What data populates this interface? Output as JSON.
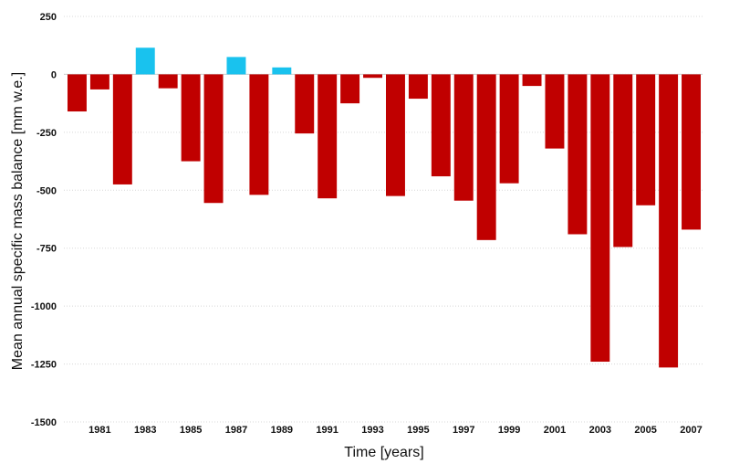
{
  "chart_data": {
    "type": "bar",
    "xlabel": "Time [years]",
    "ylabel": "Mean annual specific mass balance [mm w.e.]",
    "ylim": [
      -1500,
      250
    ],
    "yticks": [
      250,
      0,
      -250,
      -500,
      -750,
      -1000,
      -1250,
      -1500
    ],
    "grid": "horizontal dotted",
    "colors": {
      "negative": "#c00000",
      "positive": "#19c2ee"
    },
    "categories": [
      1980,
      1981,
      1982,
      1983,
      1984,
      1985,
      1986,
      1987,
      1988,
      1989,
      1990,
      1991,
      1992,
      1993,
      1994,
      1995,
      1996,
      1997,
      1998,
      1999,
      2000,
      2001,
      2002,
      2003,
      2004,
      2005,
      2006,
      2007
    ],
    "xtick_labels": [
      "1981",
      "1983",
      "1985",
      "1987",
      "1989",
      "1991",
      "1993",
      "1995",
      "1997",
      "1999",
      "2001",
      "2003",
      "2005",
      "2007"
    ],
    "values": [
      -160,
      -65,
      -475,
      115,
      -60,
      -375,
      -555,
      75,
      -520,
      30,
      -255,
      -535,
      -125,
      -15,
      -525,
      -105,
      -440,
      -545,
      -715,
      -470,
      -50,
      -320,
      -690,
      -1240,
      -745,
      -565,
      -1265,
      -670
    ]
  }
}
